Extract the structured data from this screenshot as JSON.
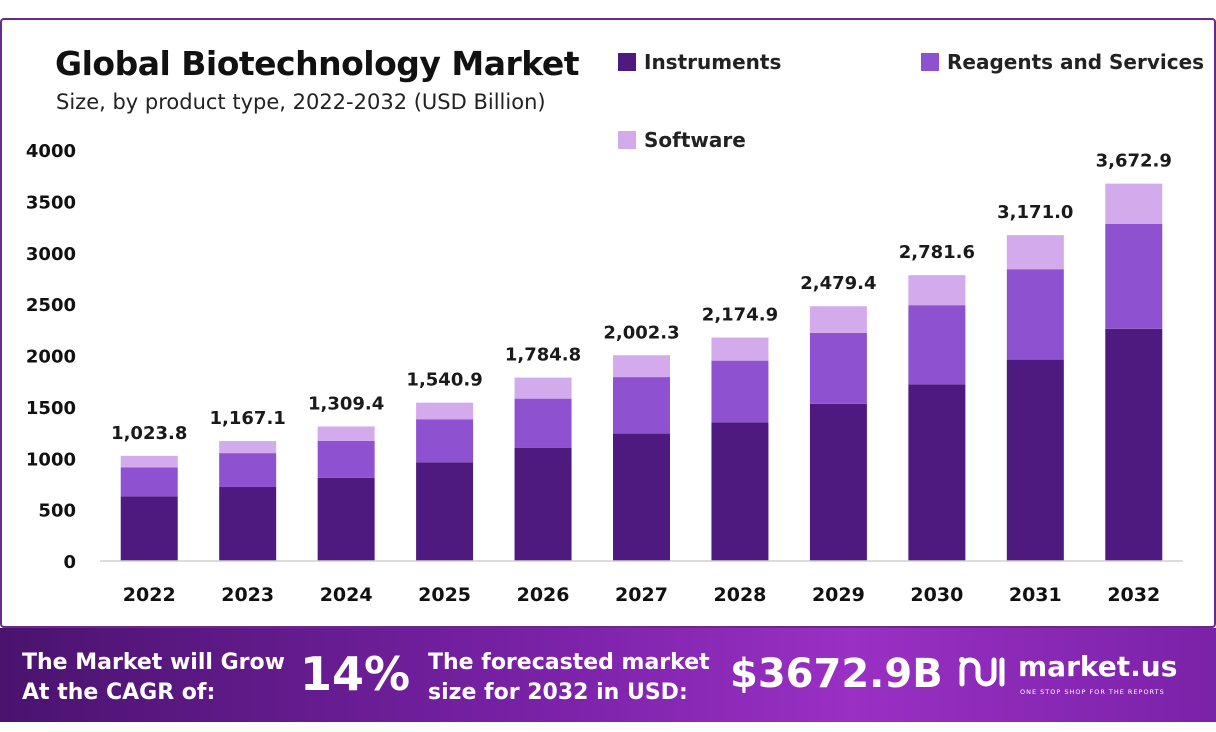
{
  "colors": {
    "instruments": "#4f1a80",
    "reagents": "#8e52d0",
    "software": "#d3aaec",
    "frame": "#6a2a8a"
  },
  "footer": {
    "cagr_label": "The Market will Grow At the CAGR of:",
    "cagr_value": "14%",
    "forecast_label": "The forecasted market size for 2032 in USD:",
    "forecast_value": "$3672.9B",
    "brand_name": "market.us",
    "brand_tagline": "ONE STOP SHOP FOR THE REPORTS",
    "brand_icon": "market-us-logo-icon"
  },
  "chart_data": {
    "type": "bar",
    "stacked": true,
    "title": "Global Biotechnology Market",
    "subtitle": "Size, by product type, 2022-2032 (USD Billion)",
    "categories": [
      "2022",
      "2023",
      "2024",
      "2025",
      "2026",
      "2027",
      "2028",
      "2029",
      "2030",
      "2031",
      "2032"
    ],
    "series": [
      {
        "name": "Instruments",
        "values": [
          630,
          720,
          810,
          960,
          1100,
          1240,
          1350,
          1530,
          1720,
          1960,
          2260
        ]
      },
      {
        "name": "Reagents and Services",
        "values": [
          280,
          330,
          360,
          420,
          480,
          550,
          600,
          690,
          770,
          880,
          1020
        ]
      },
      {
        "name": "Software",
        "values": [
          113.8,
          117.1,
          139.4,
          160.9,
          204.8,
          212.3,
          224.9,
          259.4,
          291.6,
          331.0,
          392.9
        ]
      }
    ],
    "totals": [
      "1,023.8",
      "1,167.1",
      "1,309.4",
      "1,540.9",
      "1,784.8",
      "2,002.3",
      "2,174.9",
      "2,479.4",
      "2,781.6",
      "3,171.0",
      "3,672.9"
    ],
    "ylim": [
      0,
      4000
    ],
    "yticks": [
      0,
      500,
      1000,
      1500,
      2000,
      2500,
      3000,
      3500,
      4000
    ],
    "grid": false,
    "legend_position": "top-right",
    "xlabel": "",
    "ylabel": ""
  }
}
